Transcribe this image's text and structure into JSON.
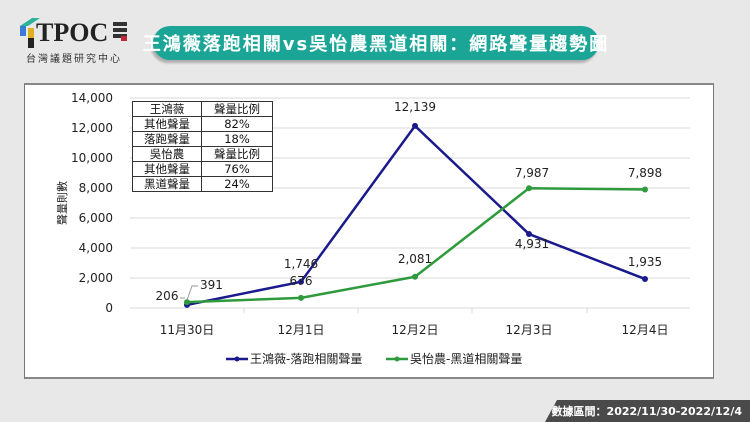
{
  "header": {
    "logo_text": "TPOC",
    "logo_subtitle": "台灣議題研究中心",
    "title": "王鴻薇落跑相關vs吳怡農黑道相關：網路聲量趨勢圖"
  },
  "ratio_table": {
    "rows": [
      [
        "王鴻薇",
        "聲量比例"
      ],
      [
        "其他聲量",
        "82%"
      ],
      [
        "落跑聲量",
        "18%"
      ],
      [
        "吳怡農",
        "聲量比例"
      ],
      [
        "其他聲量",
        "76%"
      ],
      [
        "黑道聲量",
        "24%"
      ]
    ]
  },
  "footer": {
    "date_range": "數據區間：2022/11/30-2022/12/4"
  },
  "colors": {
    "title_bg": "#1aa597",
    "series1": "#1a1a8c",
    "series2": "#2e9a3c",
    "footer_bg": "#4a4a4a"
  },
  "chart_data": {
    "type": "line",
    "title": "王鴻薇落跑相關vs吳怡農黑道相關：網路聲量趨勢圖",
    "xlabel": "",
    "ylabel": "聲量則數",
    "categories": [
      "11月30日",
      "12月1日",
      "12月2日",
      "12月3日",
      "12月4日"
    ],
    "ylim": [
      0,
      14000
    ],
    "yticks": [
      "0",
      "2,000",
      "4,000",
      "6,000",
      "8,000",
      "10,000",
      "12,000",
      "14,000"
    ],
    "grid": true,
    "legend_position": "bottom",
    "series": [
      {
        "name": "王鴻薇-落跑相關聲量",
        "color": "#1a1a8c",
        "values": [
          206,
          1746,
          12139,
          4931,
          1935
        ],
        "labels": [
          "206",
          "1,746",
          "12,139",
          "4,931",
          "1,935"
        ]
      },
      {
        "name": "吳怡農-黑道相關聲量",
        "color": "#2e9a3c",
        "values": [
          391,
          676,
          2081,
          7987,
          7898
        ],
        "labels": [
          "391",
          "676",
          "2,081",
          "7,987",
          "7,898"
        ]
      }
    ]
  }
}
